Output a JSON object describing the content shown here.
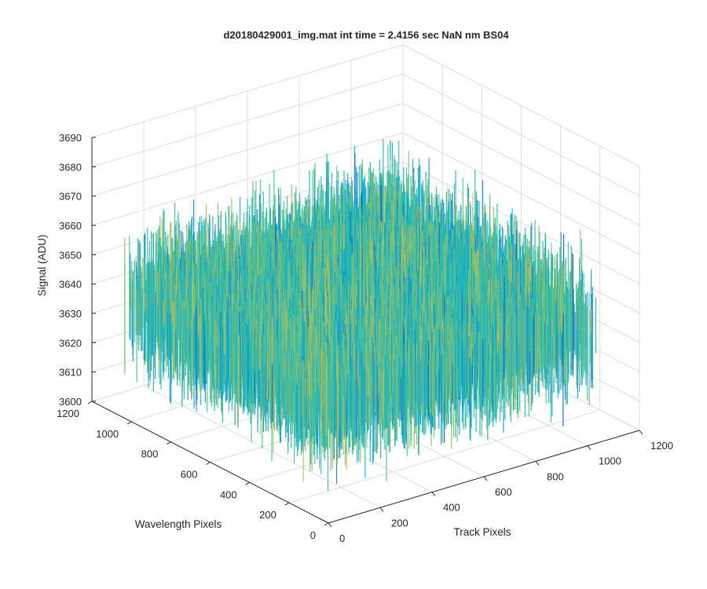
{
  "chart_data": {
    "type": "surface",
    "title": "d20180429001_img.mat int time = 2.4156 sec  NaN nm BS04",
    "xlabel": "Track Pixels",
    "ylabel": "Wavelength Pixels",
    "zlabel": "Signal (ADU)",
    "xlim": [
      0,
      1200
    ],
    "ylim": [
      0,
      1200
    ],
    "zlim": [
      3600,
      3690
    ],
    "xticks": [
      "0",
      "200",
      "400",
      "600",
      "800",
      "1000",
      "1200"
    ],
    "yticks": [
      "0",
      "200",
      "400",
      "600",
      "800",
      "1000",
      "1200"
    ],
    "zticks": [
      "3600",
      "3610",
      "3620",
      "3630",
      "3640",
      "3650",
      "3660",
      "3670",
      "3680",
      "3690"
    ],
    "data_extent": {
      "x": [
        0,
        1024
      ],
      "y": [
        0,
        1024
      ]
    },
    "signal_mean": 3640,
    "signal_range": [
      3600,
      3690
    ],
    "grid": true,
    "view": "3d-azimuth-45",
    "colormap": [
      "#0a66c8",
      "#1296d2",
      "#19b4bf",
      "#44be9a",
      "#8cc070",
      "#cdbb46",
      "#f4c42c"
    ]
  }
}
